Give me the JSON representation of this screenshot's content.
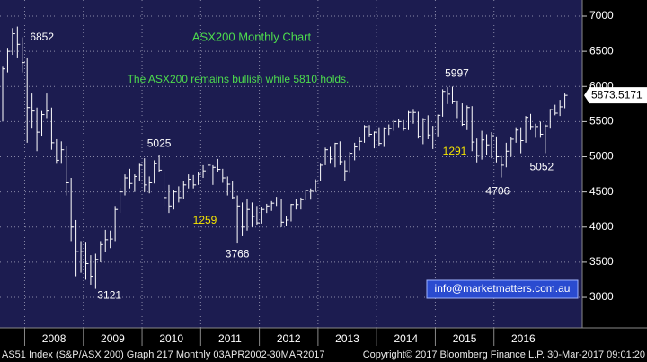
{
  "chart_data": {
    "type": "ohlc",
    "title": "ASX200 Monthly Chart",
    "subtitle": "The ASX200 remains bullish while 5810 holds.",
    "annotations": [
      "1259",
      "1291"
    ],
    "email": "info@marketmatters.com.au",
    "footer_left": "AS51 Index (S&P/ASX 200) Graph 217  Monthly 03APR2002-30MAR2017",
    "footer_right": "Copyright© 2017 Bloomberg Finance L.P.   30-Mar-2017 09:01:20",
    "year_labels": [
      "2008",
      "2009",
      "2010",
      "2011",
      "2012",
      "2013",
      "2014",
      "2015",
      "2016"
    ],
    "categories": [
      null,
      null,
      null,
      null,
      null,
      null,
      null,
      null,
      null,
      null,
      null,
      null,
      null,
      null,
      null,
      null,
      null,
      null,
      null,
      null,
      null,
      null,
      null,
      null,
      null,
      null,
      null,
      null,
      null,
      null,
      null,
      null,
      null,
      null,
      null,
      null,
      null,
      null,
      null,
      null,
      null,
      null,
      null,
      null,
      null,
      null,
      null,
      null,
      null,
      null,
      null,
      null,
      null,
      null,
      null,
      null,
      null,
      null,
      null,
      null,
      null,
      null,
      null,
      null,
      null,
      null,
      null,
      null,
      null,
      null,
      null,
      null,
      null,
      null,
      null,
      null,
      null,
      null,
      null,
      null,
      null,
      null,
      null,
      null,
      null,
      null,
      null,
      null,
      null,
      null,
      null,
      null,
      null,
      null,
      null,
      null,
      null,
      null,
      null,
      null,
      null,
      null,
      null,
      null,
      null,
      null,
      null,
      null,
      null,
      null,
      null,
      null,
      null,
      null,
      null,
      null
    ],
    "close": [
      6250,
      6500,
      6750,
      6600,
      6340,
      5700,
      5650,
      5350,
      5600,
      5650,
      5200,
      4950,
      5100,
      4630,
      4000,
      3650,
      3650,
      3480,
      3300,
      3540,
      3750,
      3820,
      3830,
      4250,
      4500,
      4700,
      4620,
      4720,
      4880,
      4600,
      4630,
      4900,
      4810,
      4420,
      4300,
      4500,
      4420,
      4600,
      4680,
      4600,
      4750,
      4800,
      4880,
      4850,
      4820,
      4700,
      4610,
      4420,
      4300,
      4000,
      4250,
      4150,
      4060,
      4250,
      4300,
      4340,
      4400,
      4070,
      4100,
      4320,
      4320,
      4390,
      4520,
      4510,
      4650,
      4880,
      5100,
      4970,
      5190,
      4930,
      4800,
      5050,
      5140,
      5220,
      5430,
      5320,
      5350,
      5190,
      5400,
      5400,
      5500,
      5500,
      5400,
      5630,
      5630,
      5290,
      5530,
      5310,
      5410,
      5590,
      5930,
      5890,
      5790,
      5780,
      5460,
      5700,
      5210,
      5020,
      5240,
      5170,
      5300,
      5000,
      4880,
      5080,
      5250,
      5380,
      5230,
      5560,
      5430,
      5430,
      5320,
      5440,
      5670,
      5620,
      5710,
      5873.5171
    ],
    "high": [
      6280,
      6550,
      6830,
      6852,
      6700,
      6400,
      5900,
      5700,
      5650,
      5900,
      5700,
      5250,
      5220,
      5150,
      4700,
      4100,
      3800,
      3790,
      3600,
      3620,
      3800,
      3960,
      3950,
      4300,
      4560,
      4750,
      4830,
      4750,
      4900,
      4980,
      4720,
      4950,
      5025,
      4800,
      4600,
      4530,
      4580,
      4650,
      4750,
      4740,
      4780,
      4880,
      4950,
      4880,
      4970,
      4830,
      4720,
      4650,
      4450,
      4350,
      4400,
      4350,
      4300,
      4280,
      4330,
      4370,
      4430,
      4400,
      4150,
      4330,
      4400,
      4420,
      4530,
      4550,
      4680,
      4900,
      5130,
      5140,
      5200,
      5220,
      4950,
      5070,
      5200,
      5280,
      5450,
      5450,
      5360,
      5420,
      5420,
      5460,
      5520,
      5540,
      5520,
      5650,
      5680,
      5640,
      5550,
      5590,
      5440,
      5600,
      5960,
      5990,
      5997,
      5800,
      5760,
      5730,
      5720,
      5260,
      5370,
      5320,
      5350,
      5290,
      5010,
      5200,
      5280,
      5420,
      5420,
      5580,
      5610,
      5470,
      5500,
      5460,
      5680,
      5740,
      5810,
      5900
    ],
    "low": [
      5500,
      6200,
      6450,
      6400,
      6200,
      5200,
      5400,
      5080,
      5300,
      5550,
      5100,
      4900,
      4900,
      4450,
      3800,
      3300,
      3350,
      3250,
      3180,
      3121,
      3500,
      3650,
      3700,
      3800,
      4200,
      4450,
      4550,
      4500,
      4650,
      4500,
      4480,
      4620,
      4780,
      4300,
      4200,
      4250,
      4350,
      4400,
      4550,
      4550,
      4600,
      4700,
      4750,
      4600,
      4780,
      4630,
      4450,
      4400,
      3766,
      3870,
      3950,
      4000,
      4030,
      4050,
      4200,
      4230,
      4300,
      4000,
      4010,
      4080,
      4250,
      4250,
      4380,
      4390,
      4500,
      4650,
      4880,
      4900,
      4850,
      4880,
      4650,
      4770,
      4950,
      5090,
      5200,
      5290,
      5120,
      5150,
      5140,
      5310,
      5370,
      5420,
      5370,
      5380,
      5470,
      5260,
      5180,
      5250,
      5110,
      5290,
      5570,
      5750,
      5750,
      5550,
      5440,
      5380,
      5080,
      4920,
      4960,
      5020,
      4980,
      4920,
      4706,
      4850,
      5000,
      5200,
      5050,
      5200,
      5380,
      5270,
      5270,
      5052,
      5400,
      5590,
      5580,
      5690
    ],
    "ylim": [
      2566,
      7230
    ],
    "yticks": [
      3000,
      3500,
      4000,
      4500,
      5000,
      5500,
      6000,
      6500,
      7000
    ],
    "grid": true,
    "color": "#ffffff",
    "background": "#1c1c50"
  }
}
